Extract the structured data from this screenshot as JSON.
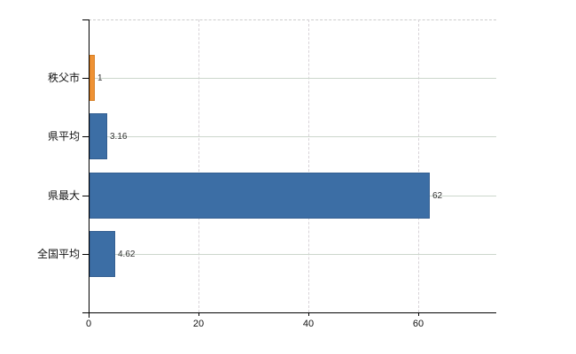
{
  "chart": {
    "background": "#ffffff",
    "axis_color": "#000000",
    "horizontal_gridline_color": "#ccd6cc",
    "vertical_gridline_color": "#d8d3d8",
    "top_frame_color": "#cccccc",
    "tick_label_color": "#111111",
    "value_label_color": "#333333"
  },
  "chart_data": {
    "type": "bar",
    "orientation": "horizontal",
    "title": "",
    "xlabel": "",
    "ylabel": "",
    "categories": [
      "秩父市",
      "県平均",
      "県最大",
      "全国平均"
    ],
    "values": [
      1,
      3.16,
      62,
      4.62
    ],
    "value_labels": [
      "1",
      "3.16",
      "62",
      "4.62"
    ],
    "bar_colors": [
      "#ef9234",
      "#3c6ea5",
      "#3c6ea5",
      "#3c6ea5"
    ],
    "bar_border_colors": [
      "#d67f24",
      "#345f91",
      "#345f91",
      "#345f91"
    ],
    "x_ticks": [
      0,
      20,
      40,
      60
    ],
    "x_tick_labels": [
      "0",
      "20",
      "40",
      "60"
    ],
    "xlim": [
      0,
      74.2
    ],
    "grid": "on",
    "legend": "none"
  }
}
